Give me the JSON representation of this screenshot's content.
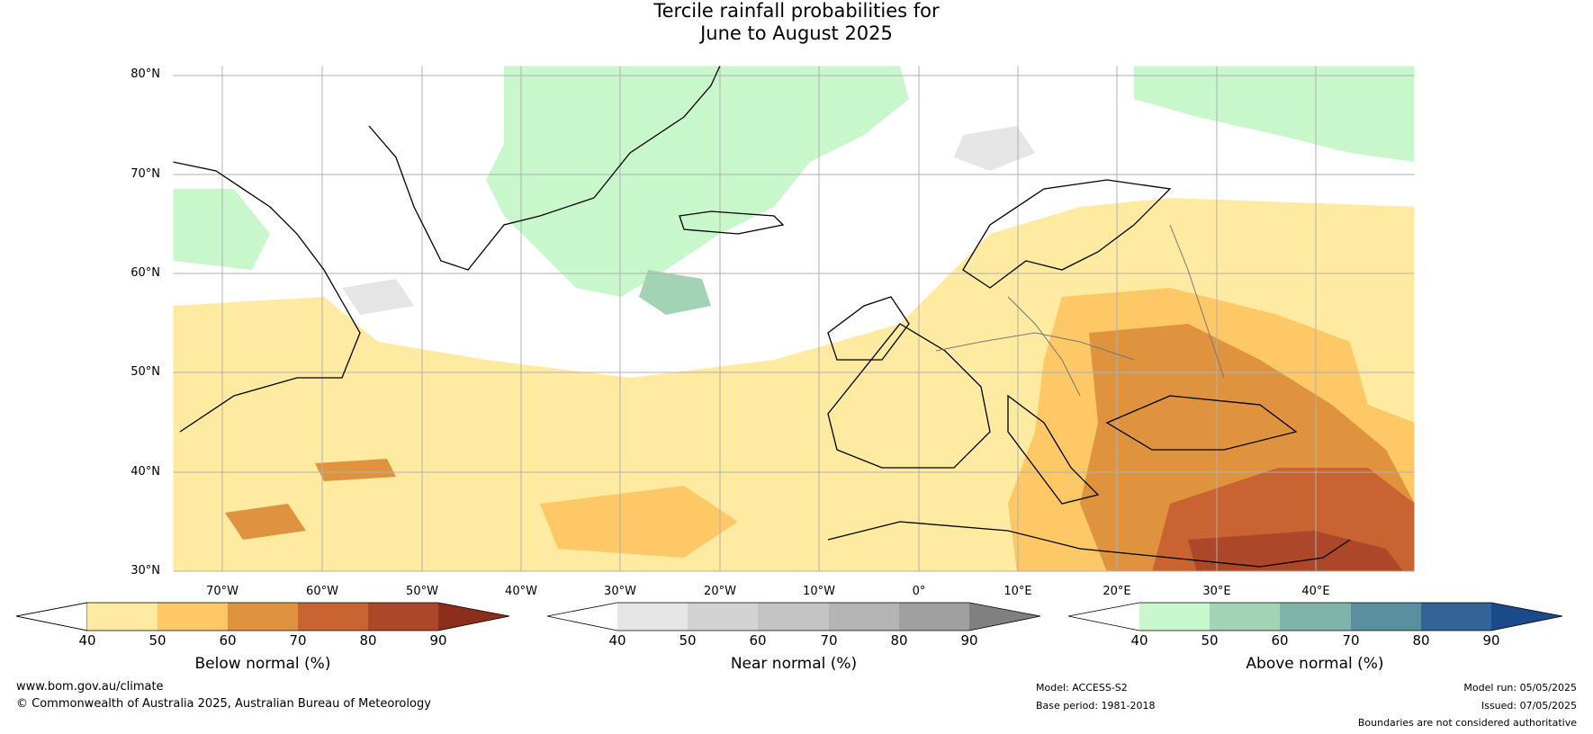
{
  "title": {
    "line1": "Tercile rainfall probabilities for",
    "line2": "June to August 2025"
  },
  "map": {
    "lat_labels": [
      "80°N",
      "70°N",
      "60°N",
      "50°N",
      "40°N",
      "30°N"
    ],
    "lon_labels": [
      "70°W",
      "60°W",
      "50°W",
      "40°W",
      "30°W",
      "20°W",
      "10°W",
      "0°",
      "10°E",
      "20°E",
      "30°E",
      "40°E"
    ]
  },
  "colorbars": [
    {
      "title": "Below normal (%)",
      "ticks": [
        "40",
        "50",
        "60",
        "70",
        "80",
        "90"
      ],
      "colors": [
        "#ffffff",
        "#feeaa0",
        "#fdc865",
        "#e0933f",
        "#c96332",
        "#ad4729",
        "#8b2e1c"
      ]
    },
    {
      "title": "Near normal (%)",
      "ticks": [
        "40",
        "50",
        "60",
        "70",
        "80",
        "90"
      ],
      "colors": [
        "#ffffff",
        "#e5e5e5",
        "#d3d3d3",
        "#c4c4c4",
        "#b4b4b4",
        "#a0a0a0",
        "#808080"
      ]
    },
    {
      "title": "Above normal (%)",
      "ticks": [
        "40",
        "50",
        "60",
        "70",
        "80",
        "90"
      ],
      "colors": [
        "#ffffff",
        "#c9f7cc",
        "#a2d3b4",
        "#7fb4aa",
        "#5a8fa0",
        "#326497",
        "#1a4a8a"
      ]
    }
  ],
  "footer": {
    "url": "www.bom.gov.au/climate",
    "copyright": "© Commonwealth of Australia 2025, Australian Bureau of Meteorology",
    "model": "Model: ACCESS-S2",
    "base_period": "Base period: 1981-2018",
    "model_run": "Model run: 05/05/2025",
    "issued": "Issued: 07/05/2025",
    "disclaimer": "Boundaries are not considered authoritative"
  }
}
